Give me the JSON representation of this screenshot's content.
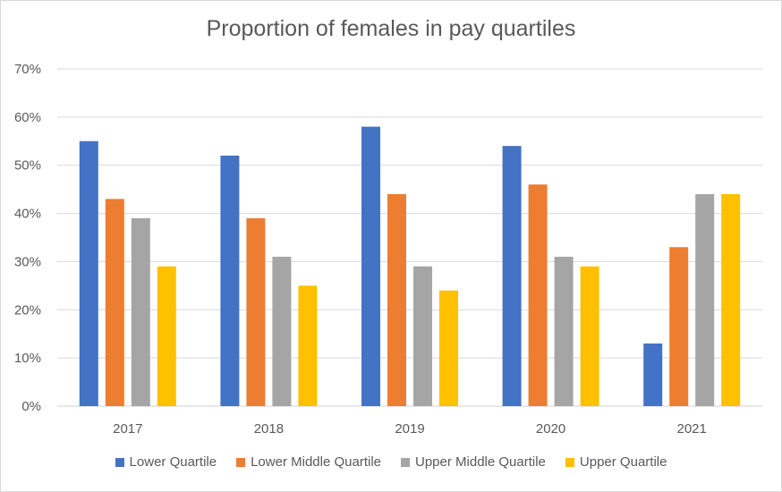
{
  "chart_data": {
    "type": "bar",
    "title": "Proportion of females in pay quartiles",
    "categories": [
      "2017",
      "2018",
      "2019",
      "2020",
      "2021"
    ],
    "series": [
      {
        "name": "Lower Quartile",
        "color": "#4472c4",
        "values": [
          55,
          52,
          58,
          54,
          13
        ]
      },
      {
        "name": "Lower Middle Quartile",
        "color": "#ed7d31",
        "values": [
          43,
          39,
          44,
          46,
          33
        ]
      },
      {
        "name": "Upper Middle Quartile",
        "color": "#a5a5a5",
        "values": [
          39,
          31,
          29,
          31,
          44
        ]
      },
      {
        "name": "Upper Quartile",
        "color": "#ffc000",
        "values": [
          29,
          25,
          24,
          29,
          44
        ]
      }
    ],
    "ylim": [
      0,
      70
    ],
    "yticks": [
      "0%",
      "10%",
      "20%",
      "30%",
      "40%",
      "50%",
      "60%",
      "70%"
    ],
    "grid": true,
    "legend_position": "bottom"
  }
}
